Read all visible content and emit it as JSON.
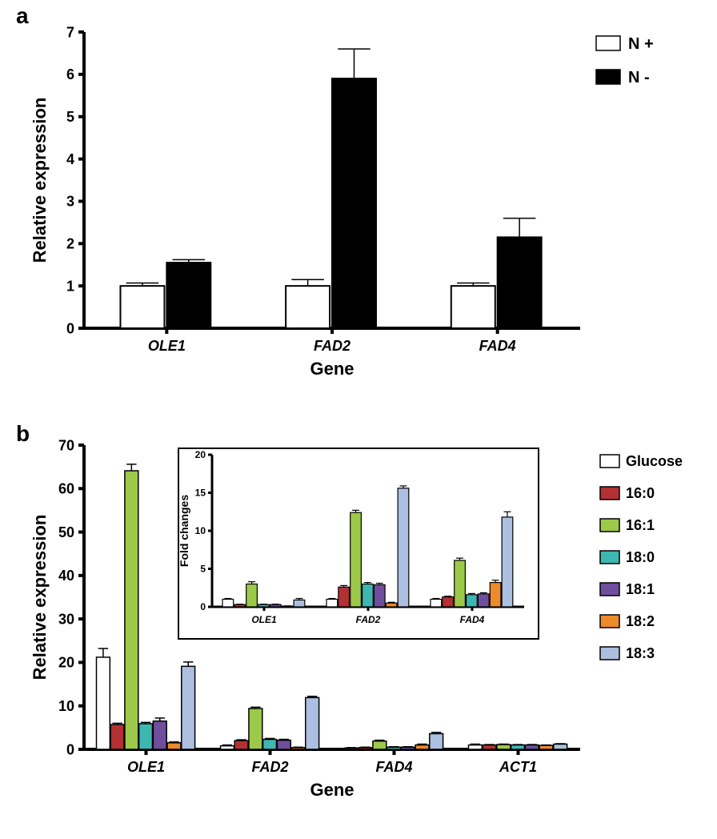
{
  "panel_a": {
    "label": "a",
    "type": "bar",
    "title_fontsize": 28,
    "ylabel": "Relative expression",
    "xlabel": "Gene",
    "label_fontsize": 22,
    "tick_fontsize": 18,
    "ylim": [
      0,
      7
    ],
    "ytick_step": 1,
    "categories": [
      "OLE1",
      "FAD2",
      "FAD4"
    ],
    "series": [
      {
        "name": "N +",
        "color": "#ffffff",
        "values": [
          1.0,
          1.0,
          1.0
        ],
        "errors": [
          0.07,
          0.15,
          0.07
        ]
      },
      {
        "name": "N -",
        "color": "#000000",
        "values": [
          1.55,
          5.9,
          2.15
        ],
        "errors": [
          0.07,
          0.7,
          0.45
        ]
      }
    ],
    "axis_color": "#000000",
    "axis_stroke": 4,
    "tick_length": 7,
    "bar_stroke": "#000000",
    "bar_stroke_width": 2,
    "legend_fontsize": 20
  },
  "panel_b": {
    "label": "b",
    "type": "bar",
    "ylabel": "Relative expression",
    "xlabel": "Gene",
    "label_fontsize": 22,
    "tick_fontsize": 18,
    "ylim": [
      0,
      70
    ],
    "ytick_step": 10,
    "categories": [
      "OLE1",
      "FAD2",
      "FAD4",
      "ACT1"
    ],
    "series": [
      {
        "name": "Glucose",
        "color": "#ffffff",
        "values": [
          21.2,
          0.8,
          0.3,
          1.0
        ],
        "errors": [
          2.0,
          0.2,
          0.1,
          0.2
        ]
      },
      {
        "name": "16:0",
        "color": "#b33133",
        "values": [
          5.7,
          2.0,
          0.4,
          1.0
        ],
        "errors": [
          0.3,
          0.2,
          0.1,
          0.1
        ]
      },
      {
        "name": "16:1",
        "color": "#9dc94a",
        "values": [
          64.1,
          9.4,
          1.9,
          1.1
        ],
        "errors": [
          1.5,
          0.3,
          0.2,
          0.1
        ]
      },
      {
        "name": "18:0",
        "color": "#3eb7b2",
        "values": [
          5.9,
          2.3,
          0.5,
          1.0
        ],
        "errors": [
          0.3,
          0.2,
          0.1,
          0.1
        ]
      },
      {
        "name": "18:1",
        "color": "#6f4e9e",
        "values": [
          6.5,
          2.1,
          0.5,
          1.0
        ],
        "errors": [
          0.7,
          0.2,
          0.1,
          0.1
        ]
      },
      {
        "name": "18:2",
        "color": "#ed8a2b",
        "values": [
          1.5,
          0.4,
          1.0,
          0.9
        ],
        "errors": [
          0.2,
          0.1,
          0.2,
          0.1
        ]
      },
      {
        "name": "18:3",
        "color": "#adbfe1",
        "values": [
          19.1,
          11.9,
          3.6,
          1.2
        ],
        "errors": [
          1.0,
          0.3,
          0.3,
          0.1
        ]
      }
    ],
    "axis_color": "#000000",
    "axis_stroke": 4,
    "tick_length": 7,
    "bar_stroke": "#000000",
    "bar_stroke_width": 1.5,
    "legend_fontsize": 18
  },
  "panel_b_inset": {
    "type": "bar",
    "ylabel": "Fold changes",
    "label_fontsize": 14,
    "tick_fontsize": 12,
    "ylim": [
      0,
      20
    ],
    "ytick_step": 5,
    "categories": [
      "OLE1",
      "FAD2",
      "FAD4"
    ],
    "uses_series_from": "panel_b",
    "values": [
      [
        1.0,
        0.3,
        3.0,
        0.3,
        0.3,
        0.1,
        0.9
      ],
      [
        1.0,
        2.6,
        12.4,
        3.0,
        2.9,
        0.5,
        15.6
      ],
      [
        1.0,
        1.3,
        6.1,
        1.6,
        1.7,
        3.2,
        11.8
      ]
    ],
    "errors": [
      [
        0.1,
        0.05,
        0.3,
        0.05,
        0.05,
        0.03,
        0.2
      ],
      [
        0.1,
        0.2,
        0.3,
        0.2,
        0.2,
        0.1,
        0.3
      ],
      [
        0.1,
        0.1,
        0.3,
        0.15,
        0.15,
        0.3,
        0.7
      ]
    ],
    "axis_color": "#000000",
    "axis_stroke": 3,
    "tick_length": 5,
    "bar_stroke": "#000000",
    "bar_stroke_width": 1.2
  }
}
